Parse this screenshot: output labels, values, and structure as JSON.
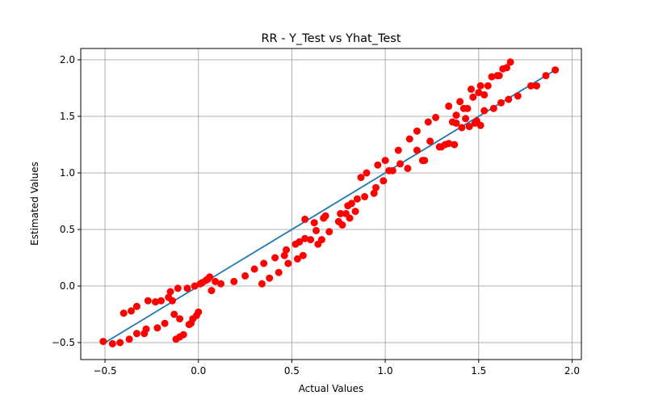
{
  "chart_data": {
    "type": "scatter",
    "title": "RR - Y_Test vs Yhat_Test",
    "xlabel": "Actual Values",
    "ylabel": "Estimated Values",
    "xlim": [
      -0.63,
      2.05
    ],
    "ylim": [
      -0.65,
      2.1
    ],
    "xticks": [
      -0.5,
      0.0,
      0.5,
      1.0,
      1.5,
      2.0
    ],
    "xtick_labels": [
      "−0.5",
      "0.0",
      "0.5",
      "1.0",
      "1.5",
      "2.0"
    ],
    "yticks": [
      -0.5,
      0.0,
      0.5,
      1.0,
      1.5,
      2.0
    ],
    "ytick_labels": [
      "−0.5",
      "0.0",
      "0.5",
      "1.0",
      "1.5",
      "2.0"
    ],
    "grid": true,
    "colors": {
      "points": "#ff0000",
      "line": "#1f77b4",
      "grid": "#b0b0b0"
    },
    "fit_line": {
      "x": [
        -0.51,
        1.91
      ],
      "y": [
        -0.51,
        1.91
      ]
    },
    "points": [
      [
        -0.51,
        -0.49
      ],
      [
        -0.46,
        -0.51
      ],
      [
        -0.42,
        -0.5
      ],
      [
        -0.4,
        -0.24
      ],
      [
        -0.36,
        -0.22
      ],
      [
        -0.33,
        -0.18
      ],
      [
        -0.37,
        -0.47
      ],
      [
        -0.33,
        -0.42
      ],
      [
        -0.29,
        -0.42
      ],
      [
        -0.28,
        -0.38
      ],
      [
        -0.27,
        -0.13
      ],
      [
        -0.23,
        -0.14
      ],
      [
        -0.2,
        -0.13
      ],
      [
        -0.22,
        -0.37
      ],
      [
        -0.18,
        -0.33
      ],
      [
        -0.16,
        -0.1
      ],
      [
        -0.15,
        -0.05
      ],
      [
        -0.14,
        -0.13
      ],
      [
        -0.13,
        -0.25
      ],
      [
        -0.12,
        -0.47
      ],
      [
        -0.11,
        -0.02
      ],
      [
        -0.1,
        -0.29
      ],
      [
        -0.1,
        -0.45
      ],
      [
        -0.08,
        -0.43
      ],
      [
        -0.06,
        -0.02
      ],
      [
        -0.05,
        -0.34
      ],
      [
        -0.04,
        -0.33
      ],
      [
        -0.03,
        -0.29
      ],
      [
        -0.02,
        0.0
      ],
      [
        -0.01,
        -0.26
      ],
      [
        0.0,
        -0.23
      ],
      [
        0.01,
        0.02
      ],
      [
        0.02,
        0.03
      ],
      [
        0.04,
        0.05
      ],
      [
        0.05,
        0.06
      ],
      [
        0.06,
        0.08
      ],
      [
        0.07,
        -0.04
      ],
      [
        0.09,
        0.04
      ],
      [
        0.12,
        0.02
      ],
      [
        0.19,
        0.04
      ],
      [
        0.25,
        0.09
      ],
      [
        0.3,
        0.15
      ],
      [
        0.34,
        0.02
      ],
      [
        0.35,
        0.2
      ],
      [
        0.38,
        0.07
      ],
      [
        0.41,
        0.25
      ],
      [
        0.43,
        0.12
      ],
      [
        0.46,
        0.27
      ],
      [
        0.47,
        0.32
      ],
      [
        0.48,
        0.2
      ],
      [
        0.52,
        0.37
      ],
      [
        0.53,
        0.24
      ],
      [
        0.54,
        0.39
      ],
      [
        0.56,
        0.27
      ],
      [
        0.57,
        0.42
      ],
      [
        0.57,
        0.59
      ],
      [
        0.6,
        0.41
      ],
      [
        0.62,
        0.56
      ],
      [
        0.63,
        0.49
      ],
      [
        0.64,
        0.37
      ],
      [
        0.66,
        0.41
      ],
      [
        0.67,
        0.6
      ],
      [
        0.68,
        0.62
      ],
      [
        0.7,
        0.48
      ],
      [
        0.75,
        0.57
      ],
      [
        0.76,
        0.64
      ],
      [
        0.77,
        0.54
      ],
      [
        0.79,
        0.64
      ],
      [
        0.8,
        0.71
      ],
      [
        0.81,
        0.6
      ],
      [
        0.82,
        0.73
      ],
      [
        0.84,
        0.66
      ],
      [
        0.85,
        0.77
      ],
      [
        0.87,
        0.96
      ],
      [
        0.89,
        0.79
      ],
      [
        0.9,
        1.0
      ],
      [
        0.94,
        0.82
      ],
      [
        0.95,
        0.87
      ],
      [
        0.96,
        1.07
      ],
      [
        0.99,
        0.93
      ],
      [
        1.0,
        1.11
      ],
      [
        1.02,
        1.02
      ],
      [
        1.04,
        1.02
      ],
      [
        1.07,
        1.2
      ],
      [
        1.08,
        1.08
      ],
      [
        1.12,
        1.04
      ],
      [
        1.13,
        1.3
      ],
      [
        1.17,
        1.2
      ],
      [
        1.17,
        1.37
      ],
      [
        1.2,
        1.11
      ],
      [
        1.21,
        1.11
      ],
      [
        1.23,
        1.45
      ],
      [
        1.24,
        1.28
      ],
      [
        1.27,
        1.49
      ],
      [
        1.29,
        1.23
      ],
      [
        1.3,
        1.23
      ],
      [
        1.32,
        1.25
      ],
      [
        1.34,
        1.59
      ],
      [
        1.34,
        1.26
      ],
      [
        1.36,
        1.45
      ],
      [
        1.37,
        1.25
      ],
      [
        1.38,
        1.44
      ],
      [
        1.38,
        1.51
      ],
      [
        1.4,
        1.63
      ],
      [
        1.41,
        1.4
      ],
      [
        1.42,
        1.57
      ],
      [
        1.43,
        1.48
      ],
      [
        1.44,
        1.57
      ],
      [
        1.45,
        1.41
      ],
      [
        1.46,
        1.74
      ],
      [
        1.47,
        1.67
      ],
      [
        1.48,
        1.44
      ],
      [
        1.49,
        1.46
      ],
      [
        1.5,
        1.71
      ],
      [
        1.51,
        1.42
      ],
      [
        1.51,
        1.77
      ],
      [
        1.53,
        1.69
      ],
      [
        1.53,
        1.55
      ],
      [
        1.55,
        1.77
      ],
      [
        1.57,
        1.85
      ],
      [
        1.58,
        1.57
      ],
      [
        1.6,
        1.86
      ],
      [
        1.61,
        1.86
      ],
      [
        1.62,
        1.62
      ],
      [
        1.63,
        1.92
      ],
      [
        1.65,
        1.93
      ],
      [
        1.66,
        1.65
      ],
      [
        1.67,
        1.98
      ],
      [
        1.71,
        1.68
      ],
      [
        1.78,
        1.77
      ],
      [
        1.81,
        1.77
      ],
      [
        1.86,
        1.86
      ],
      [
        1.91,
        1.91
      ]
    ]
  }
}
